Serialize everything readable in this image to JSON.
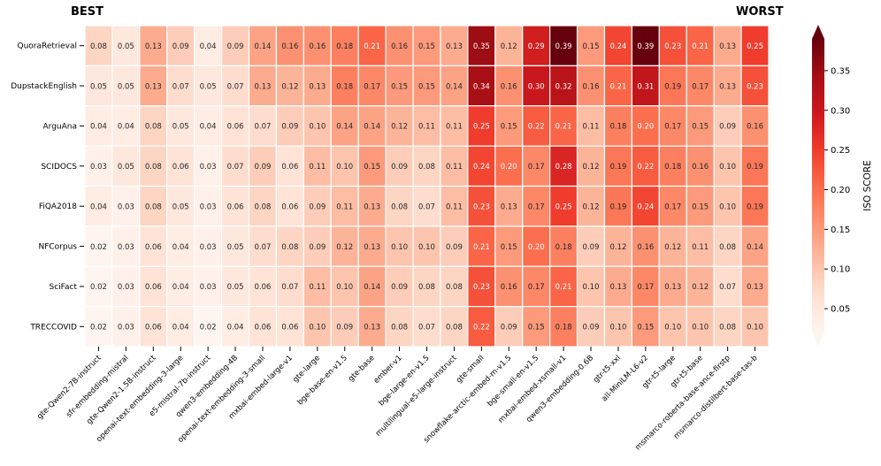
{
  "labels": {
    "best": "BEST",
    "worst": "WORST"
  },
  "chart_data": {
    "type": "heatmap",
    "rows": [
      "QuoraRetrieval",
      "DupstackEnglish",
      "ArguAna",
      "SCIDOCS",
      "FiQA2018",
      "NFCorpus",
      "SciFact",
      "TRECCOVID"
    ],
    "columns": [
      "gte-Qwen2-7B-instruct",
      "sfr-embedding-mistral",
      "gte-Qwen2-1.5B-instruct",
      "openai-text-embedding-3-large",
      "e5-mistral-7b-instruct",
      "qwen3-embedding-4B",
      "openai-text-embedding-3-small",
      "mxbai-embed-large-v1",
      "gte-large",
      "bge-base-en-v1.5",
      "gte-base",
      "ember-v1",
      "bge-large-en-v1.5",
      "multilingual-e5-large-instruct",
      "gte-small",
      "snowflake-arctic-embed-m-v1.5",
      "bge-small-en-v1.5",
      "mxbai-embed-xsmall-v1",
      "qwen3-embedding-0.6B",
      "gtr-t5-xxl",
      "all-MiniLM-L6-v2",
      "gtr-t5-large",
      "gtr-t5-base",
      "msmarco-roberta-base-ance-firstp",
      "msmarco-distilbert-base-tas-b"
    ],
    "values": [
      [
        0.08,
        0.05,
        0.13,
        0.09,
        0.04,
        0.09,
        0.14,
        0.16,
        0.16,
        0.18,
        0.21,
        0.16,
        0.15,
        0.13,
        0.35,
        0.12,
        0.29,
        0.39,
        0.15,
        0.24,
        0.39,
        0.23,
        0.21,
        0.13,
        0.25
      ],
      [
        0.05,
        0.05,
        0.13,
        0.07,
        0.05,
        0.07,
        0.13,
        0.12,
        0.13,
        0.18,
        0.17,
        0.15,
        0.15,
        0.14,
        0.34,
        0.16,
        0.3,
        0.32,
        0.16,
        0.21,
        0.31,
        0.19,
        0.17,
        0.13,
        0.23
      ],
      [
        0.04,
        0.04,
        0.08,
        0.05,
        0.04,
        0.06,
        0.07,
        0.09,
        0.1,
        0.14,
        0.14,
        0.12,
        0.11,
        0.11,
        0.25,
        0.15,
        0.22,
        0.21,
        0.11,
        0.18,
        0.2,
        0.17,
        0.15,
        0.09,
        0.16
      ],
      [
        0.03,
        0.05,
        0.08,
        0.06,
        0.03,
        0.07,
        0.09,
        0.06,
        0.11,
        0.1,
        0.15,
        0.09,
        0.08,
        0.11,
        0.24,
        0.2,
        0.17,
        0.28,
        0.12,
        0.19,
        0.22,
        0.18,
        0.16,
        0.1,
        0.19
      ],
      [
        0.04,
        0.03,
        0.08,
        0.05,
        0.03,
        0.06,
        0.08,
        0.06,
        0.09,
        0.11,
        0.13,
        0.08,
        0.07,
        0.11,
        0.23,
        0.13,
        0.17,
        0.25,
        0.12,
        0.19,
        0.24,
        0.17,
        0.15,
        0.1,
        0.19
      ],
      [
        0.02,
        0.03,
        0.06,
        0.04,
        0.03,
        0.05,
        0.07,
        0.08,
        0.09,
        0.12,
        0.13,
        0.1,
        0.1,
        0.09,
        0.21,
        0.15,
        0.2,
        0.18,
        0.09,
        0.12,
        0.16,
        0.12,
        0.11,
        0.08,
        0.14
      ],
      [
        0.02,
        0.03,
        0.06,
        0.04,
        0.03,
        0.05,
        0.06,
        0.07,
        0.11,
        0.1,
        0.14,
        0.09,
        0.08,
        0.08,
        0.23,
        0.16,
        0.17,
        0.21,
        0.1,
        0.13,
        0.17,
        0.13,
        0.12,
        0.07,
        0.13
      ],
      [
        0.02,
        0.03,
        0.06,
        0.04,
        0.02,
        0.04,
        0.06,
        0.06,
        0.1,
        0.09,
        0.13,
        0.08,
        0.07,
        0.08,
        0.22,
        0.09,
        0.15,
        0.18,
        0.09,
        0.1,
        0.15,
        0.1,
        0.1,
        0.08,
        0.1
      ]
    ],
    "colorbar": {
      "label": "ISO SCORE",
      "range": [
        0.02,
        0.39
      ],
      "ticks": [
        "0.05",
        "0.10",
        "0.15",
        "0.20",
        "0.25",
        "0.30",
        "0.35"
      ],
      "tick_values": [
        0.05,
        0.1,
        0.15,
        0.2,
        0.25,
        0.3,
        0.35
      ],
      "colormap": "Reds",
      "colors": [
        "#fff5f0",
        "#fee0d2",
        "#fcbba1",
        "#fc9272",
        "#fb6a4a",
        "#ef3b2c",
        "#cb181d",
        "#a50f15",
        "#67000d"
      ]
    }
  }
}
